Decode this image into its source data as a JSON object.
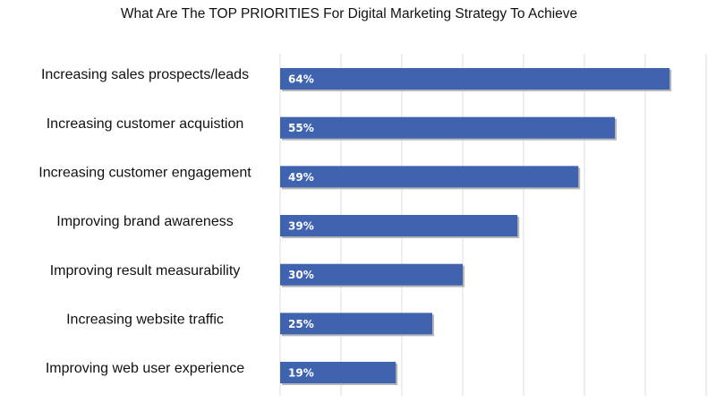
{
  "chart_data": {
    "type": "bar",
    "orientation": "horizontal",
    "title": "What Are The TOP PRIORITIES For Digital Marketing Strategy To Achieve",
    "categories": [
      "Increasing sales prospects/leads",
      "Increasing customer acquistion",
      "Increasing customer engagement",
      "Improving brand awareness",
      "Improving result measurability",
      "Increasing website traffic",
      "Improving web user experience"
    ],
    "values": [
      64,
      55,
      49,
      39,
      30,
      25,
      19
    ],
    "data_labels": [
      "64%",
      "55%",
      "49%",
      "39%",
      "30%",
      "25%",
      "19%"
    ],
    "unit": "%",
    "xlim": [
      0,
      70
    ],
    "grid": true,
    "legend": "none",
    "bar_color": "#4063b0",
    "bar_shadow_color": "#b7b7b7",
    "grid_color": "#dcdcdc"
  }
}
